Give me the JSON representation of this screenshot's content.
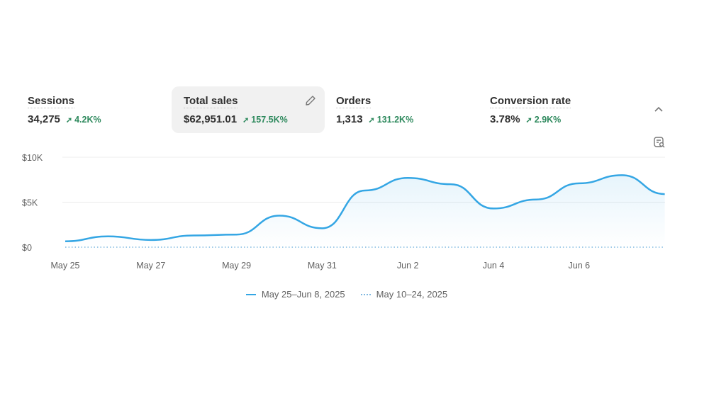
{
  "metrics": [
    {
      "label": "Sessions",
      "value": "34,275",
      "delta": "4.2K%"
    },
    {
      "label": "Total sales",
      "value": "$62,951.01",
      "delta": "157.5K%",
      "active": true
    },
    {
      "label": "Orders",
      "value": "1,313",
      "delta": "131.2K%"
    },
    {
      "label": "Conversion rate",
      "value": "3.78%",
      "delta": "2.9K%"
    }
  ],
  "icons": {
    "edit": "pencil-icon",
    "collapse": "chevron-up-icon",
    "explore": "report-search-icon",
    "delta": "arrow-up-right-icon"
  },
  "colors": {
    "primary": "#34a6e4",
    "comparison": "#7fb8e0",
    "positive": "#2f8a5e"
  },
  "chart_data": {
    "type": "line",
    "x": [
      "May 25",
      "May 26",
      "May 27",
      "May 28",
      "May 29",
      "May 30",
      "May 31",
      "Jun 1",
      "Jun 2",
      "Jun 3",
      "Jun 4",
      "Jun 5",
      "Jun 6",
      "Jun 7",
      "Jun 8"
    ],
    "x_tick_labels": [
      "May 25",
      "May 27",
      "May 29",
      "May 31",
      "Jun 2",
      "Jun 4",
      "Jun 6"
    ],
    "y_tick_labels": [
      "$0",
      "$5K",
      "$10K"
    ],
    "ylim": [
      0,
      10000
    ],
    "grid": true,
    "legend_position": "bottom",
    "series": [
      {
        "name": "May 25–Jun 8, 2025",
        "style": "solid",
        "values": [
          650,
          1200,
          800,
          1300,
          1400,
          3500,
          2100,
          6300,
          7700,
          7000,
          4300,
          5300,
          7100,
          8000,
          5900
        ]
      },
      {
        "name": "May 10–24, 2025",
        "style": "dotted",
        "values": [
          0,
          0,
          0,
          0,
          0,
          0,
          0,
          0,
          0,
          0,
          0,
          0,
          0,
          0,
          0
        ]
      }
    ]
  }
}
